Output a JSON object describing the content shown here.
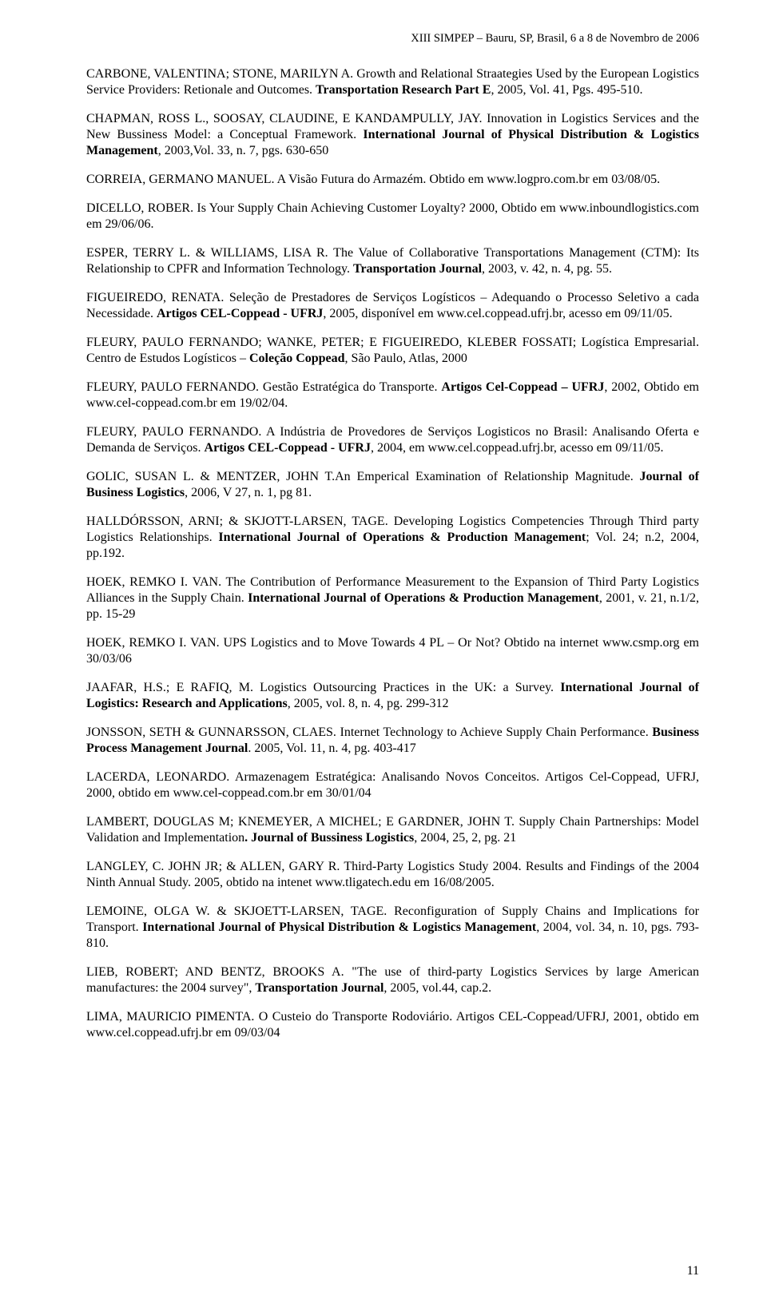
{
  "header": "XIII SIMPEP – Bauru, SP, Brasil, 6 a 8 de Novembro de 2006",
  "refs": [
    {
      "pre": "CARBONE, VALENTINA; STONE, MARILYN A. Growth and Relational Straategies Used by the European Logistics Service Providers: Retionale and Outcomes. ",
      "bold": "Transportation Research Part E",
      "post": ", 2005, Vol. 41,  Pgs. 495-510."
    },
    {
      "pre": "CHAPMAN, ROSS L., SOOSAY, CLAUDINE, E KANDAMPULLY, JAY. Innovation in Logistics Services and the New Bussiness Model: a Conceptual Framework. ",
      "bold": "International Journal of Physical Distribution & Logistics Management",
      "post": ", 2003,Vol. 33, n. 7, pgs. 630-650"
    },
    {
      "pre": "CORREIA, GERMANO MANUEL. A Visão Futura do Armazém. Obtido em www.logpro.com.br em 03/08/05.",
      "bold": "",
      "post": ""
    },
    {
      "pre": "DICELLO, ROBER. Is Your Supply Chain Achieving Customer Loyalty? 2000, Obtido em www.inboundlogistics.com em 29/06/06.",
      "bold": "",
      "post": ""
    },
    {
      "pre": "ESPER, TERRY L. & WILLIAMS, LISA R. The Value of Collaborative Transportations Management (CTM): Its Relationship to CPFR and Information  Technology. ",
      "bold": "Transportation Journal",
      "post": ", 2003, v. 42, n. 4, pg. 55."
    },
    {
      "pre": "FIGUEIREDO, RENATA. Seleção de Prestadores de Serviços Logísticos – Adequando o Processo Seletivo a cada Necessidade. ",
      "bold": "Artigos CEL-Coppead - UFRJ",
      "post": ", 2005, disponível em www.cel.coppead.ufrj.br, acesso em 09/11/05."
    },
    {
      "pre": "FLEURY, PAULO FERNANDO; WANKE, PETER; E FIGUEIREDO, KLEBER FOSSATI; Logística Empresarial. Centro de Estudos Logísticos – ",
      "bold": "Coleção Coppead",
      "post": ", São Paulo, Atlas, 2000"
    },
    {
      "pre": "FLEURY, PAULO FERNANDO. Gestão Estratégica do Transporte. ",
      "bold": "Artigos Cel-Coppead – UFRJ",
      "post": ", 2002, Obtido em www.cel-coppead.com.br em 19/02/04."
    },
    {
      "pre": "FLEURY, PAULO FERNANDO. A Indústria de Provedores de Serviços Logisticos no Brasil: Analisando Oferta e Demanda de Serviços. ",
      "bold": "Artigos CEL-Coppead - UFRJ",
      "post": ", 2004, em www.cel.coppead.ufrj.br, acesso em 09/11/05."
    },
    {
      "pre": "GOLIC, SUSAN L. & MENTZER, JOHN T.An Emperical Examination of Relationship Magnitude. ",
      "bold": "Journal of Business Logistics",
      "post": ", 2006, V 27, n. 1, pg 81."
    },
    {
      "pre": "HALLDÓRSSON, ARNI; & SKJOTT-LARSEN, TAGE. Developing Logistics Competencies Through Third party Logistics Relationships. ",
      "bold": "International Journal of Operations & Production Management",
      "post": "; Vol. 24; n.2, 2004, pp.192."
    },
    {
      "pre": "HOEK, REMKO I. VAN. The Contribution of Performance Measurement to the Expansion of Third Party Logistics Alliances in the Supply Chain. ",
      "bold": "International Journal of Operations & Production Management",
      "post": ", 2001, v. 21, n.1/2, pp. 15-29"
    },
    {
      "pre": "HOEK, REMKO I. VAN. UPS Logistics and to Move Towards 4 PL – Or Not? Obtido na internet www.csmp.org em 30/03/06",
      "bold": "",
      "post": ""
    },
    {
      "pre": " JAAFAR, H.S.; E RAFIQ, M. Logistics Outsourcing Practices in the UK: a Survey. ",
      "bold": "International Journal of Logistics: Research and Applications",
      "post": ", 2005, vol. 8, n. 4, pg. 299-312"
    },
    {
      "pre": "JONSSON, SETH & GUNNARSSON, CLAES. Internet Technology to Achieve Supply Chain Performance. ",
      "bold": "Business Process Management Journal",
      "post": ". 2005, Vol. 11, n. 4, pg. 403-417"
    },
    {
      "pre": "LACERDA, LEONARDO. Armazenagem Estratégica: Analisando Novos Conceitos. Artigos Cel-Coppead, UFRJ, 2000, obtido em www.cel-coppead.com.br em 30/01/04",
      "bold": "",
      "post": ""
    },
    {
      "pre": "LAMBERT, DOUGLAS M; KNEMEYER, A MICHEL; E GARDNER, JOHN T. Supply Chain Partnerships: Model Validation and Implementation",
      "bold": ". Journal of Bussiness Logistics",
      "post": ", 2004,  25, 2, pg. 21"
    },
    {
      "pre": "LANGLEY, C. JOHN JR; & ALLEN, GARY R. Third-Party Logistics Study 2004. Results and Findings of the 2004 Ninth Annual Study. 2005, obtido na intenet www.tligatech.edu em 16/08/2005.",
      "bold": "",
      "post": ""
    },
    {
      "pre": "LEMOINE, OLGA W. & SKJOETT-LARSEN, TAGE. Reconfiguration of Supply Chains and Implications for Transport. ",
      "bold": "International Journal of Physical Distribution & Logistics Management",
      "post": ", 2004, vol. 34, n. 10, pgs. 793-810."
    },
    {
      "pre": "LIEB, ROBERT; AND BENTZ, BROOKS A. \"The use of third-party Logistics Services by large American manufactures: the 2004 survey\", ",
      "bold": "Transportation Journal",
      "post": ", 2005, vol.44, cap.2."
    },
    {
      "pre": "LIMA, MAURICIO PIMENTA. O Custeio do Transporte Rodoviário. Artigos CEL-Coppead/UFRJ, 2001, obtido em www.cel.coppead.ufrj.br em 09/03/04",
      "bold": "",
      "post": ""
    }
  ],
  "pageNumber": "11"
}
